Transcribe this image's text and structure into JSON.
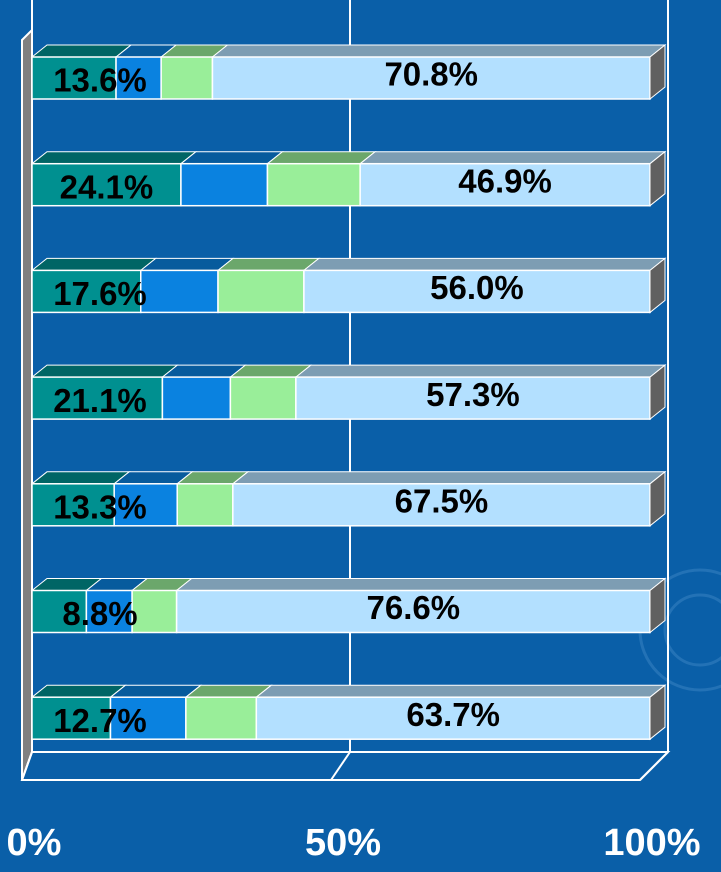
{
  "chart_data": {
    "type": "stacked-bar-horizontal-3d",
    "categories": [
      null,
      null,
      null,
      null,
      null,
      null,
      null
    ],
    "series": [
      {
        "color": "#009090",
        "values": [
          13.6,
          24.1,
          17.6,
          21.1,
          13.3,
          8.8,
          12.7
        ],
        "value_labels": [
          "13.6%",
          "24.1%",
          "17.6%",
          "21.1%",
          "13.3%",
          "8.8%",
          "12.7%"
        ]
      },
      {
        "color": "#0a82e0",
        "values": [
          7.3,
          14.0,
          12.5,
          11.0,
          10.2,
          7.4,
          12.2
        ]
      },
      {
        "color": "#99ee99",
        "values": [
          8.3,
          15.0,
          13.9,
          10.6,
          9.0,
          7.2,
          11.4
        ]
      },
      {
        "color": "#b3e0ff",
        "values": [
          70.8,
          46.9,
          56.0,
          57.3,
          67.5,
          76.6,
          63.7
        ],
        "value_labels": [
          "70.8%",
          "46.9%",
          "56.0%",
          "57.3%",
          "67.5%",
          "76.6%",
          "63.7%"
        ]
      }
    ],
    "xlim": [
      0,
      100
    ],
    "xticks": [
      {
        "value": 0,
        "label": "0%"
      },
      {
        "value": 50,
        "label": "50%"
      },
      {
        "value": 100,
        "label": "100%"
      }
    ],
    "grid": true
  }
}
